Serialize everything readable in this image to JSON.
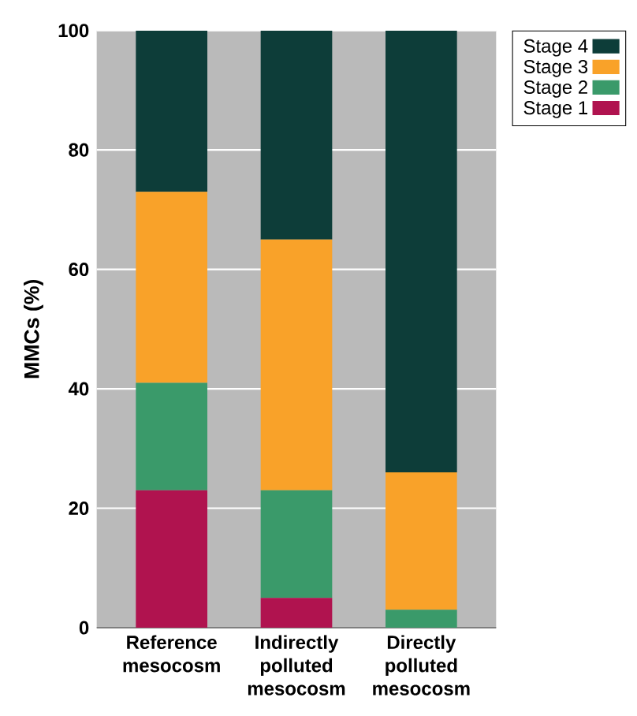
{
  "chart_data": {
    "type": "bar",
    "stacked": true,
    "ylabel": "MMCs (%)",
    "categories": [
      "Reference mesocosm",
      "Indirectly polluted mesocosm",
      "Directly polluted mesocosm"
    ],
    "series": [
      {
        "name": "Stage 1",
        "color": "#b0134f",
        "values": [
          23,
          5,
          0
        ]
      },
      {
        "name": "Stage 2",
        "color": "#3a9a6a",
        "values": [
          18,
          18,
          3
        ]
      },
      {
        "name": "Stage 3",
        "color": "#f9a229",
        "values": [
          32,
          42,
          23
        ]
      },
      {
        "name": "Stage 4",
        "color": "#0d3d39",
        "values": [
          27,
          35,
          74
        ]
      }
    ],
    "ylim": [
      0,
      100
    ],
    "yticks": [
      0,
      20,
      40,
      60,
      80,
      100
    ],
    "grid": "y",
    "legend": "right"
  }
}
